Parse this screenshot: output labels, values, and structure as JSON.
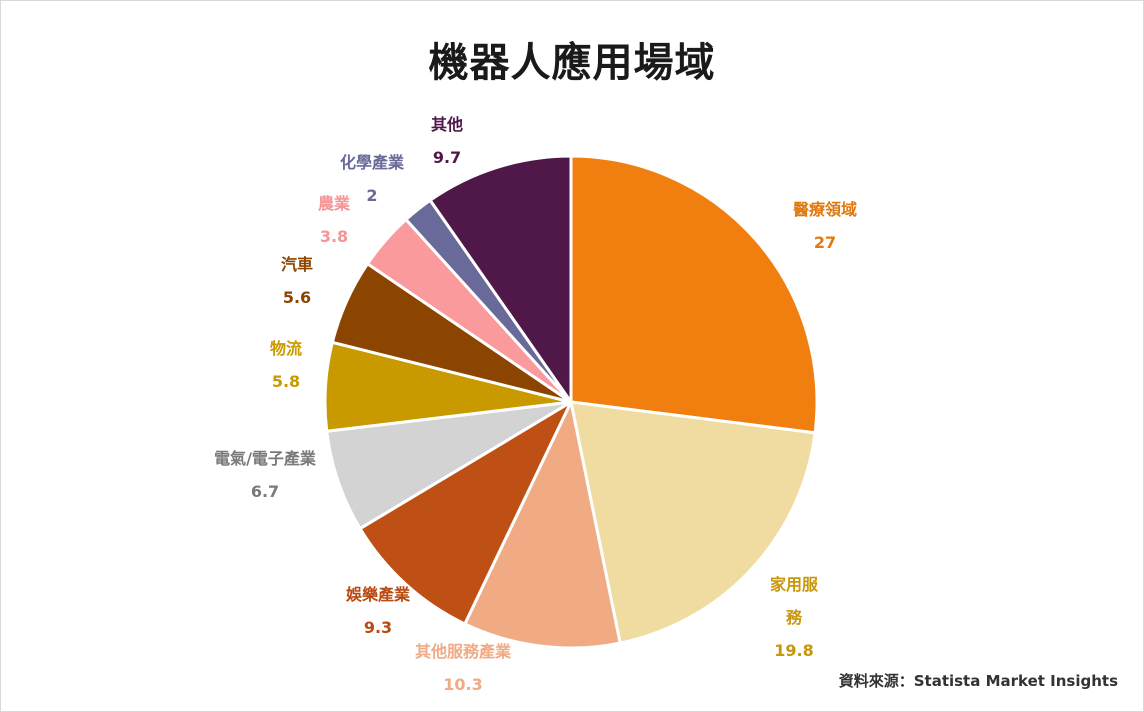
{
  "chart_data": {
    "type": "pie",
    "title": "機器人應用場域",
    "categories": [
      "醫療領域",
      "家用服務",
      "其他服務產業",
      "娛樂產業",
      "電氣/電子產業",
      "物流",
      "汽車",
      "農業",
      "化學產業",
      "其他"
    ],
    "label_lines": [
      [
        "醫療領域"
      ],
      [
        "家用服",
        "務"
      ],
      [
        "其他服務產業"
      ],
      [
        "娛樂產業"
      ],
      [
        "電氣/電子產業"
      ],
      [
        "物流"
      ],
      [
        "汽車"
      ],
      [
        "農業"
      ],
      [
        "化學產業"
      ],
      [
        "其他"
      ]
    ],
    "values": [
      27,
      19.8,
      10.3,
      9.3,
      6.7,
      5.8,
      5.6,
      3.8,
      2,
      9.7
    ],
    "value_labels": [
      "27",
      "19.8",
      "10.3",
      "9.3",
      "6.7",
      "5.8",
      "5.6",
      "3.8",
      "2",
      "9.7"
    ],
    "colors": [
      "#F07F10",
      "#F0DCA0",
      "#F0AB85",
      "#BF5015",
      "#D3D3D3",
      "#C89A00",
      "#8B4500",
      "#FA9A9C",
      "#6A6A9A",
      "#501848"
    ],
    "label_colors": [
      "#E07A10",
      "#C8960A",
      "#F0AB85",
      "#B84A12",
      "#7A7A7A",
      "#C89A00",
      "#8B4500",
      "#F49597",
      "#6A6A9A",
      "#501848"
    ],
    "legend": "none"
  },
  "source_note": "資料來源：Statista Market Insights"
}
